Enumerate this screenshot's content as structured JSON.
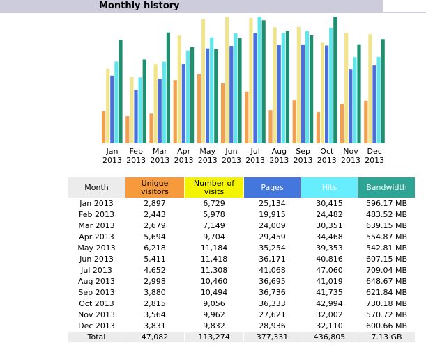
{
  "title": "Monthly history",
  "colors": {
    "visitors": "#f0a050",
    "visits": "#f0e48c",
    "pages": "#4a70dc",
    "hits": "#5fe6ec",
    "bandwidth": "#1e9070",
    "header_month": "#ececec",
    "header_visitors": "#f79a3c",
    "header_visits": "#f4f400",
    "header_pages": "#4477dd",
    "header_hits": "#66eeff",
    "header_bandwidth": "#2ea495"
  },
  "chart_data": {
    "type": "bar",
    "categories": [
      "Jan 2013",
      "Feb 2013",
      "Mar 2013",
      "Apr 2013",
      "May 2013",
      "Jun 2013",
      "Jul 2013",
      "Aug 2013",
      "Sep 2013",
      "Oct 2013",
      "Nov 2013",
      "Dec 2013"
    ],
    "month_labels": [
      "Jan",
      "Feb",
      "Mar",
      "Apr",
      "May",
      "Jun",
      "Jul",
      "Aug",
      "Sep",
      "Oct",
      "Nov",
      "Dec"
    ],
    "year_labels": [
      "2013",
      "2013",
      "2013",
      "2013",
      "2013",
      "2013",
      "2013",
      "2013",
      "2013",
      "2013",
      "2013",
      "2013"
    ],
    "series": [
      {
        "name": "Unique visitors",
        "values": [
          2897,
          2443,
          2679,
          5694,
          6218,
          5411,
          4652,
          2998,
          3880,
          2815,
          3564,
          3831
        ]
      },
      {
        "name": "Number of visits",
        "values": [
          6729,
          5978,
          7149,
          9704,
          11184,
          11418,
          11308,
          10460,
          10494,
          9056,
          9962,
          9832
        ]
      },
      {
        "name": "Pages",
        "values": [
          25134,
          19915,
          24009,
          29459,
          35254,
          36171,
          41068,
          36695,
          36736,
          36333,
          27621,
          28936
        ]
      },
      {
        "name": "Hits",
        "values": [
          30415,
          24482,
          30351,
          34468,
          39353,
          40816,
          47060,
          41019,
          41735,
          42994,
          32002,
          32110
        ]
      },
      {
        "name": "Bandwidth (MB)",
        "values": [
          596.17,
          483.52,
          639.15,
          554.87,
          542.81,
          607.15,
          709.04,
          648.67,
          621.84,
          730.18,
          570.72,
          600.66
        ]
      }
    ]
  },
  "table": {
    "headers": {
      "month": "Month",
      "visitors": [
        "Unique",
        "visitors"
      ],
      "visits": [
        "Number of",
        "visits"
      ],
      "pages": "Pages",
      "hits": "Hits",
      "bandwidth": "Bandwidth"
    },
    "rows": [
      {
        "month": "Jan 2013",
        "visitors": "2,897",
        "visits": "6,729",
        "pages": "25,134",
        "hits": "30,415",
        "bandwidth": "596.17 MB"
      },
      {
        "month": "Feb 2013",
        "visitors": "2,443",
        "visits": "5,978",
        "pages": "19,915",
        "hits": "24,482",
        "bandwidth": "483.52 MB"
      },
      {
        "month": "Mar 2013",
        "visitors": "2,679",
        "visits": "7,149",
        "pages": "24,009",
        "hits": "30,351",
        "bandwidth": "639.15 MB"
      },
      {
        "month": "Apr 2013",
        "visitors": "5,694",
        "visits": "9,704",
        "pages": "29,459",
        "hits": "34,468",
        "bandwidth": "554.87 MB"
      },
      {
        "month": "May 2013",
        "visitors": "6,218",
        "visits": "11,184",
        "pages": "35,254",
        "hits": "39,353",
        "bandwidth": "542.81 MB"
      },
      {
        "month": "Jun 2013",
        "visitors": "5,411",
        "visits": "11,418",
        "pages": "36,171",
        "hits": "40,816",
        "bandwidth": "607.15 MB"
      },
      {
        "month": "Jul 2013",
        "visitors": "4,652",
        "visits": "11,308",
        "pages": "41,068",
        "hits": "47,060",
        "bandwidth": "709.04 MB"
      },
      {
        "month": "Aug 2013",
        "visitors": "2,998",
        "visits": "10,460",
        "pages": "36,695",
        "hits": "41,019",
        "bandwidth": "648.67 MB"
      },
      {
        "month": "Sep 2013",
        "visitors": "3,880",
        "visits": "10,494",
        "pages": "36,736",
        "hits": "41,735",
        "bandwidth": "621.84 MB"
      },
      {
        "month": "Oct 2013",
        "visitors": "2,815",
        "visits": "9,056",
        "pages": "36,333",
        "hits": "42,994",
        "bandwidth": "730.18 MB"
      },
      {
        "month": "Nov 2013",
        "visitors": "3,564",
        "visits": "9,962",
        "pages": "27,621",
        "hits": "32,002",
        "bandwidth": "570.72 MB"
      },
      {
        "month": "Dec 2013",
        "visitors": "3,831",
        "visits": "9,832",
        "pages": "28,936",
        "hits": "32,110",
        "bandwidth": "600.66 MB"
      }
    ],
    "total": {
      "month": "Total",
      "visitors": "47,082",
      "visits": "113,274",
      "pages": "377,331",
      "hits": "436,805",
      "bandwidth": "7.13 GB"
    }
  }
}
